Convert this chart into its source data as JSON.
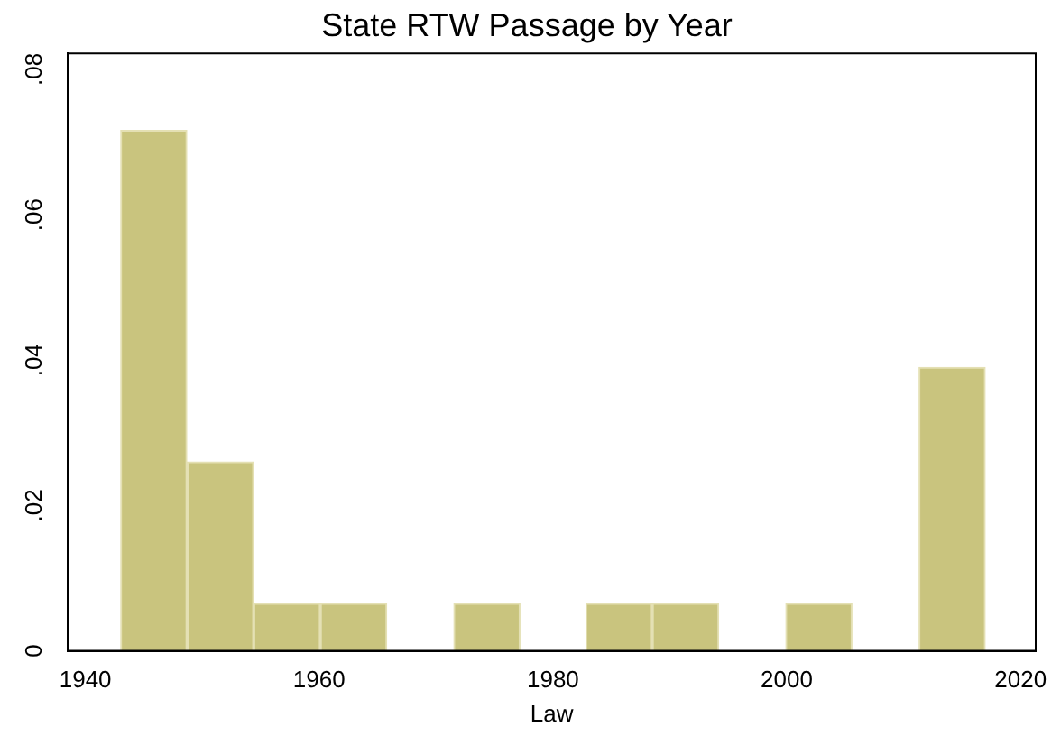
{
  "chart_data": {
    "type": "histogram",
    "title": "State RTW Passage by Year",
    "xlabel": "Law",
    "bins": [
      1943,
      1948.7,
      1954.4,
      1960.1,
      1965.8,
      1971.5,
      1977.2,
      1982.8,
      1988.5,
      1994.2,
      1999.9,
      2005.6,
      2011.3,
      2017
    ],
    "values": [
      0.0716,
      0.026,
      0.0065,
      0.0065,
      0,
      0.0065,
      0,
      0.0065,
      0.0065,
      0,
      0.0065,
      0,
      0.039
    ],
    "color": "#c9c47e",
    "xlim": [
      1938.5,
      2021.3
    ],
    "xticks": [
      1940,
      1960,
      1980,
      2000,
      2020
    ],
    "ylim": [
      0,
      0.0822
    ],
    "yticks": [
      0,
      {
        "value": 0.02,
        "label": ".02"
      },
      {
        "value": 0.04,
        "label": ".04"
      },
      {
        "value": 0.06,
        "label": ".06"
      },
      {
        "value": 0.08,
        "label": ".08"
      }
    ],
    "grid": false,
    "legend": false
  }
}
